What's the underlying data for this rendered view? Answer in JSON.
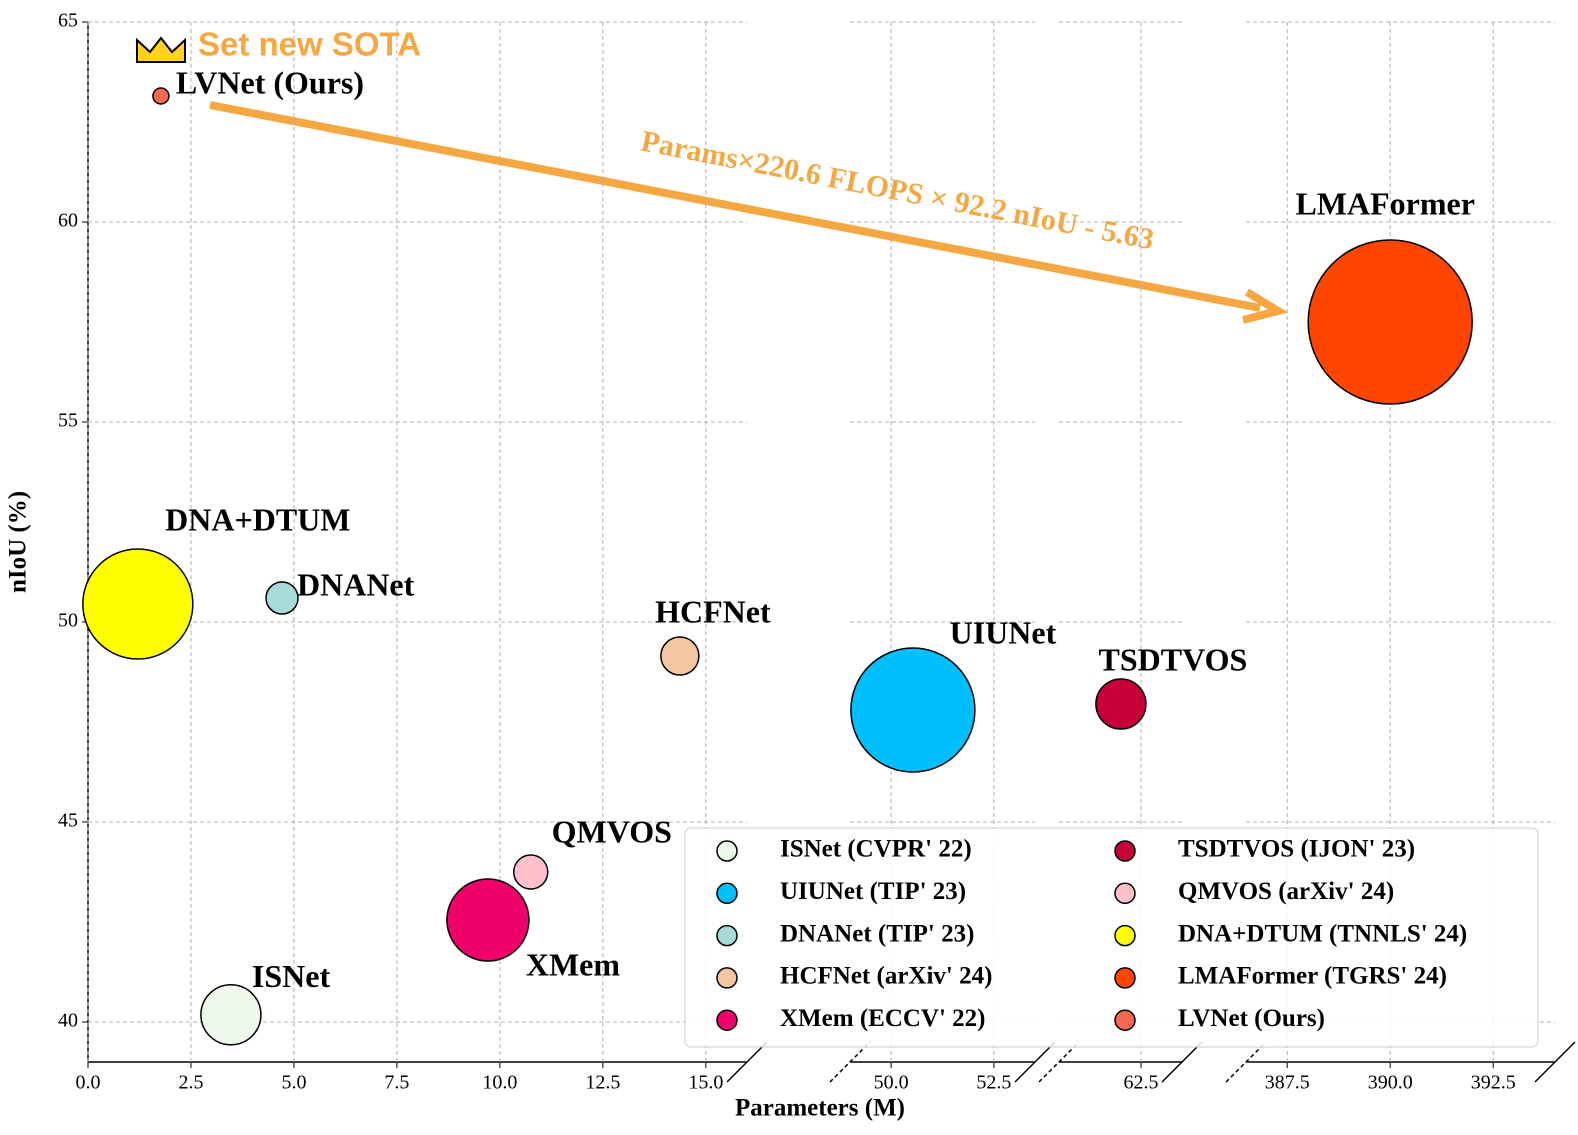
{
  "chart_data": {
    "type": "scatter",
    "xlabel": "Parameters (M)",
    "ylabel": "nIoU (%)",
    "annotations": {
      "sota": "Set new SOTA",
      "arrow": "Params×220.6  FLOPS × 92.2   nIoU - 5.63"
    },
    "ylim": [
      39,
      65
    ],
    "yticks": [
      40,
      45,
      50,
      55,
      60,
      65
    ],
    "grid": true,
    "x_segments": [
      {
        "xlim": [
          0,
          16
        ],
        "xticks": [
          {
            "value": 0,
            "label": "0.0"
          },
          {
            "value": 2.5,
            "label": "2.5"
          },
          {
            "value": 5,
            "label": "5.0"
          },
          {
            "value": 7.5,
            "label": "7.5"
          },
          {
            "value": 10,
            "label": "10.0"
          },
          {
            "value": 12.5,
            "label": "12.5"
          },
          {
            "value": 15,
            "label": "15.0"
          }
        ]
      },
      {
        "xlim": [
          49,
          53.5
        ],
        "xticks": [
          {
            "value": 50,
            "label": "50.0"
          },
          {
            "value": 52.5,
            "label": "52.5"
          }
        ]
      },
      {
        "xlim": [
          60.5,
          63.5
        ],
        "xticks": [
          62.5
        ]
      },
      {
        "xlim": [
          386.5,
          394
        ],
        "xticks": [
          387.5,
          {
            "value": 390,
            "label": "390.0"
          },
          392.5
        ]
      }
    ],
    "legend": "lower right",
    "series": [
      {
        "name": "ISNet (CVPR' 22)",
        "label": "ISNet",
        "color": "#eef8ea",
        "x": [
          3.47
        ],
        "y": [
          40.18
        ],
        "sizes": [
          30
        ]
      },
      {
        "name": "UIUNet (TIP' 23)",
        "label": "UIUNet",
        "color": "#00bfff",
        "x": [
          50.53
        ],
        "y": [
          47.8
        ],
        "sizes": [
          62
        ]
      },
      {
        "name": "DNANet (TIP' 23)",
        "label": "DNANet",
        "color": "#a8dadc",
        "x": [
          4.71
        ],
        "y": [
          50.6
        ],
        "sizes": [
          16
        ]
      },
      {
        "name": "HCFNet (arXiv' 24)",
        "label": "HCFNet",
        "color": "#f5c6a0",
        "x": [
          14.37
        ],
        "y": [
          49.15
        ],
        "sizes": [
          19
        ]
      },
      {
        "name": "XMem (ECCV' 22)",
        "label": "XMem",
        "color": "#f0006a",
        "x": [
          9.71
        ],
        "y": [
          42.55
        ],
        "sizes": [
          41
        ]
      },
      {
        "name": "TSDTVOS (IJON' 23)",
        "label": "TSDTVOS",
        "color": "#c8003a",
        "x": [
          62.01
        ],
        "y": [
          47.95
        ],
        "sizes": [
          25
        ]
      },
      {
        "name": "QMVOS (arXiv' 24)",
        "label": "QMVOS",
        "color": "#ffc0cb",
        "x": [
          10.75
        ],
        "y": [
          43.75
        ],
        "sizes": [
          17
        ]
      },
      {
        "name": "DNA+DTUM (TNNLS' 24)",
        "label": "DNA+DTUM",
        "color": "#ffff00",
        "x": [
          1.21
        ],
        "y": [
          50.45
        ],
        "sizes": [
          55
        ]
      },
      {
        "name": "LMAFormer (TGRS' 24)",
        "label": "LMAFormer",
        "color": "#ff4500",
        "x": [
          390
        ],
        "y": [
          57.5
        ],
        "sizes": [
          82
        ]
      },
      {
        "name": "LVNet (Ours)",
        "label": "LVNet (Ours)",
        "color": "#f26a4f",
        "x": [
          1.77
        ],
        "y": [
          63.15
        ],
        "sizes": [
          8
        ]
      }
    ]
  }
}
